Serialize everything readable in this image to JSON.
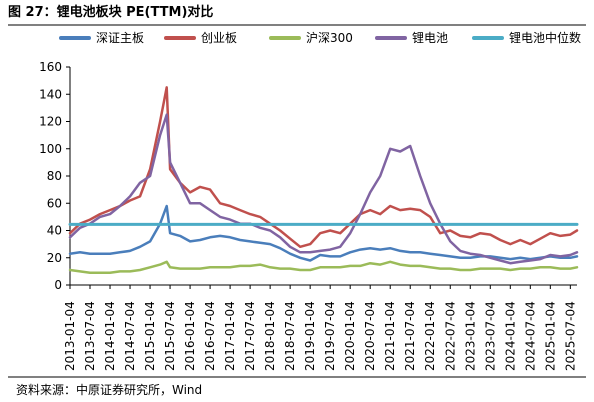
{
  "figure": {
    "title": "图 27：锂电池板块 PE(TTM)对比",
    "source": "资料来源：中原证券研究所，Wind"
  },
  "chart_data": {
    "type": "line",
    "title": "",
    "xlabel": "",
    "ylabel": "",
    "legend_position": "top",
    "grid": false,
    "ylim": [
      0,
      160
    ],
    "yticks": [
      0,
      20,
      40,
      60,
      80,
      100,
      120,
      140,
      160
    ],
    "x_tick_labels": [
      "2013-01-04",
      "2013-07-04",
      "2014-01-04",
      "2014-07-04",
      "2015-01-04",
      "2015-07-04",
      "2016-01-04",
      "2016-07-04",
      "2017-01-04",
      "2017-07-04",
      "2018-01-04",
      "2018-07-04",
      "2019-01-04",
      "2019-07-04",
      "2020-01-04",
      "2020-07-04",
      "2021-01-04",
      "2021-07-04",
      "2022-01-04",
      "2022-07-04",
      "2023-01-04",
      "2023-07-04",
      "2024-01-04",
      "2024-07-04",
      "2025-01-04",
      "2025-07-04"
    ],
    "x": [
      "2013-01",
      "2013-04",
      "2013-07",
      "2013-10",
      "2014-01",
      "2014-04",
      "2014-07",
      "2014-10",
      "2015-01",
      "2015-04",
      "2015-06",
      "2015-07",
      "2015-10",
      "2016-01",
      "2016-04",
      "2016-07",
      "2016-10",
      "2017-01",
      "2017-04",
      "2017-07",
      "2017-10",
      "2018-01",
      "2018-04",
      "2018-07",
      "2018-10",
      "2019-01",
      "2019-04",
      "2019-07",
      "2019-10",
      "2020-01",
      "2020-04",
      "2020-07",
      "2020-10",
      "2021-01",
      "2021-04",
      "2021-07",
      "2021-10",
      "2022-01",
      "2022-04",
      "2022-07",
      "2022-10",
      "2023-01",
      "2023-04",
      "2023-07",
      "2023-10",
      "2024-01",
      "2024-04",
      "2024-07",
      "2024-10",
      "2025-01",
      "2025-04",
      "2025-07",
      "2025-09"
    ],
    "series": [
      {
        "name": "深证主板",
        "color": "#4a7ebb",
        "values": [
          23,
          24,
          23,
          23,
          23,
          24,
          25,
          28,
          32,
          45,
          58,
          38,
          36,
          32,
          33,
          35,
          36,
          35,
          33,
          32,
          31,
          30,
          27,
          23,
          20,
          18,
          22,
          21,
          21,
          24,
          26,
          27,
          26,
          27,
          25,
          24,
          24,
          23,
          22,
          21,
          20,
          20,
          21,
          21,
          20,
          19,
          20,
          19,
          20,
          21,
          20,
          20,
          21
        ]
      },
      {
        "name": "创业板",
        "color": "#c0504d",
        "values": [
          38,
          45,
          48,
          52,
          55,
          58,
          62,
          65,
          85,
          120,
          145,
          85,
          75,
          68,
          72,
          70,
          60,
          58,
          55,
          52,
          50,
          45,
          40,
          34,
          28,
          30,
          38,
          40,
          38,
          45,
          52,
          55,
          52,
          58,
          55,
          56,
          55,
          50,
          38,
          40,
          36,
          35,
          38,
          37,
          33,
          30,
          33,
          30,
          34,
          38,
          36,
          37,
          40
        ]
      },
      {
        "name": "沪深300",
        "color": "#9bbb59",
        "values": [
          11,
          10,
          9,
          9,
          9,
          10,
          10,
          11,
          13,
          15,
          17,
          13,
          12,
          12,
          12,
          13,
          13,
          13,
          14,
          14,
          15,
          13,
          12,
          12,
          11,
          11,
          13,
          13,
          13,
          14,
          14,
          16,
          15,
          17,
          15,
          14,
          14,
          13,
          12,
          12,
          11,
          11,
          12,
          12,
          12,
          11,
          12,
          12,
          13,
          13,
          12,
          12,
          13
        ]
      },
      {
        "name": "锂电池",
        "color": "#8064a2",
        "values": [
          35,
          42,
          45,
          50,
          52,
          58,
          65,
          75,
          80,
          110,
          125,
          90,
          75,
          60,
          60,
          55,
          50,
          48,
          45,
          45,
          42,
          40,
          35,
          28,
          24,
          24,
          25,
          26,
          28,
          38,
          52,
          68,
          80,
          100,
          98,
          102,
          80,
          60,
          45,
          32,
          25,
          23,
          22,
          20,
          18,
          16,
          17,
          18,
          19,
          22,
          21,
          22,
          24
        ]
      },
      {
        "name": "锂电池中位数",
        "color": "#4bacc6",
        "values": [
          44.5,
          44.5,
          44.5,
          44.5,
          44.5,
          44.5,
          44.5,
          44.5,
          44.5,
          44.5,
          44.5,
          44.5,
          44.5,
          44.5,
          44.5,
          44.5,
          44.5,
          44.5,
          44.5,
          44.5,
          44.5,
          44.5,
          44.5,
          44.5,
          44.5,
          44.5,
          44.5,
          44.5,
          44.5,
          44.5,
          44.5,
          44.5,
          44.5,
          44.5,
          44.5,
          44.5,
          44.5,
          44.5,
          44.5,
          44.5,
          44.5,
          44.5,
          44.5,
          44.5,
          44.5,
          44.5,
          44.5,
          44.5,
          44.5,
          44.5,
          44.5,
          44.5,
          44.5
        ]
      }
    ]
  }
}
